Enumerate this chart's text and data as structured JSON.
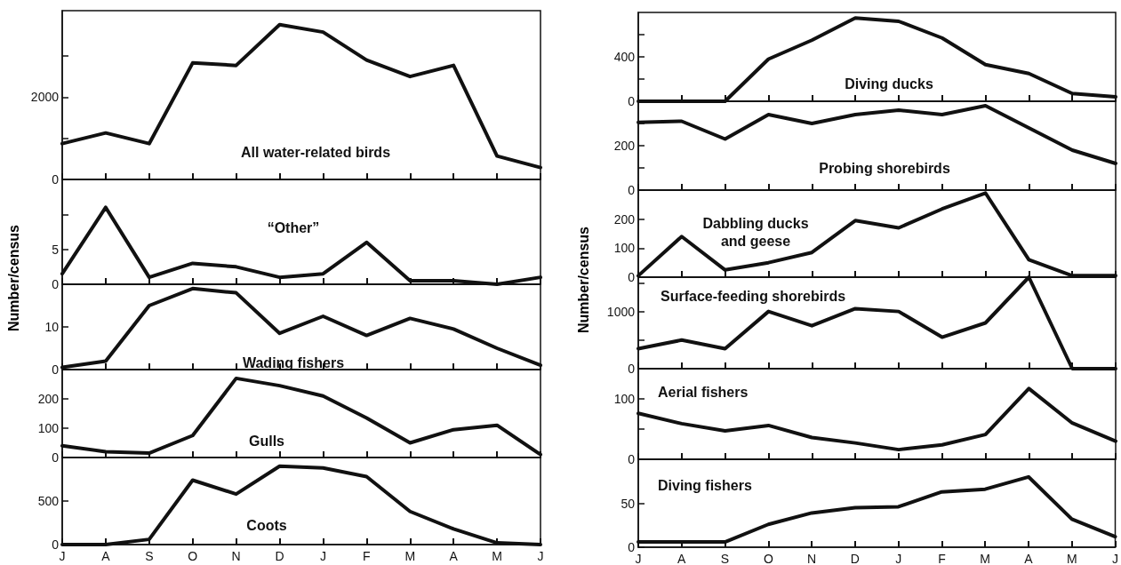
{
  "chart_data": [
    {
      "type": "line",
      "title": "All water-related birds",
      "categories": [
        null,
        null,
        null,
        null,
        null,
        null,
        null,
        null,
        null,
        null,
        null,
        null
      ],
      "values": [
        870,
        1130,
        870,
        2830,
        2770,
        3760,
        3580,
        2900,
        2500,
        2770,
        570,
        290
      ],
      "color": "#111111",
      "ylim": [
        0,
        4100
      ],
      "yticks": [
        0,
        {
          "value": 1000,
          "label": null
        },
        2000,
        {
          "value": 3000,
          "label": null
        }
      ]
    },
    {
      "type": "line",
      "title": "“Other”",
      "ylabel": "Number/census",
      "categories": [
        null,
        null,
        null,
        null,
        null,
        null,
        null,
        null,
        null,
        null,
        null,
        null
      ],
      "values": [
        1.5,
        11,
        1,
        3,
        2.5,
        1,
        1.5,
        6,
        0.5,
        0.5,
        0,
        1
      ],
      "color": "#111111",
      "ylim": [
        0,
        15
      ],
      "yticks": [
        0,
        5,
        {
          "value": 10,
          "label": null
        }
      ]
    },
    {
      "type": "line",
      "title": "Wading fishers",
      "categories": [
        null,
        null,
        null,
        null,
        null,
        null,
        null,
        null,
        null,
        null,
        null,
        null
      ],
      "values": [
        0.5,
        2,
        15,
        19,
        18,
        8.5,
        12.5,
        8,
        12,
        9.5,
        5,
        1
      ],
      "color": "#111111",
      "ylim": [
        0,
        20
      ],
      "yticks": [
        0,
        10
      ]
    },
    {
      "type": "line",
      "title": "Gulls",
      "categories": [
        null,
        null,
        null,
        null,
        null,
        null,
        null,
        null,
        null,
        null,
        null,
        null
      ],
      "values": [
        40,
        20,
        15,
        75,
        270,
        245,
        210,
        135,
        50,
        95,
        110,
        10
      ],
      "color": "#111111",
      "ylim": [
        0,
        300
      ],
      "yticks": [
        0,
        100,
        200
      ]
    },
    {
      "type": "line",
      "title": "Coots",
      "categories": [
        "J",
        "A",
        "S",
        "O",
        "N",
        "D",
        "J",
        "F",
        "M",
        "A",
        "M",
        "J"
      ],
      "values": [
        0,
        0,
        60,
        740,
        580,
        900,
        880,
        780,
        380,
        180,
        20,
        0
      ],
      "color": "#111111",
      "ylim": [
        0,
        1000
      ],
      "yticks": [
        0,
        500
      ]
    },
    {
      "type": "line",
      "title": "Diving ducks",
      "categories": [
        null,
        null,
        null,
        null,
        null,
        null,
        null,
        null,
        null,
        null,
        null,
        null
      ],
      "values": [
        0,
        0,
        0,
        380,
        550,
        750,
        720,
        570,
        330,
        250,
        70,
        40
      ],
      "color": "#111111",
      "ylim": [
        0,
        800
      ],
      "yticks": [
        0,
        {
          "value": 200,
          "label": null
        },
        400,
        {
          "value": 600,
          "label": null
        }
      ]
    },
    {
      "type": "line",
      "title": "Probing shorebirds",
      "categories": [
        null,
        null,
        null,
        null,
        null,
        null,
        null,
        null,
        null,
        null,
        null,
        null
      ],
      "values": [
        305,
        310,
        230,
        340,
        300,
        340,
        360,
        340,
        380,
        280,
        180,
        120
      ],
      "color": "#111111",
      "ylim": [
        0,
        400
      ],
      "yticks": [
        0,
        {
          "value": 100,
          "label": null
        },
        200,
        {
          "value": 300,
          "label": null
        }
      ]
    },
    {
      "type": "line",
      "title": "Dabbling ducks\nand geese",
      "ylabel": "Number/census",
      "categories": [
        null,
        null,
        null,
        null,
        null,
        null,
        null,
        null,
        null,
        null,
        null,
        null
      ],
      "values": [
        5,
        140,
        25,
        50,
        85,
        195,
        170,
        235,
        290,
        60,
        5,
        5
      ],
      "color": "#111111",
      "ylim": [
        0,
        300
      ],
      "yticks": [
        0,
        100,
        200
      ]
    },
    {
      "type": "line",
      "title": "Surface-feeding shorebirds",
      "categories": [
        null,
        null,
        null,
        null,
        null,
        null,
        null,
        null,
        null,
        null,
        null,
        null
      ],
      "values": [
        350,
        500,
        350,
        1000,
        750,
        1050,
        1000,
        550,
        800,
        1600,
        0,
        0
      ],
      "color": "#111111",
      "ylim": [
        0,
        1600
      ],
      "yticks": [
        0,
        {
          "value": 500,
          "label": null
        },
        1000,
        {
          "value": 1500,
          "label": null
        }
      ]
    },
    {
      "type": "line",
      "title": "Aerial fishers",
      "categories": [
        null,
        null,
        null,
        null,
        null,
        null,
        null,
        null,
        null,
        null,
        null,
        null
      ],
      "values": [
        76,
        59,
        47,
        56,
        36,
        27,
        16,
        24,
        41,
        117,
        60,
        30
      ],
      "color": "#111111",
      "ylim": [
        0,
        150
      ],
      "yticks": [
        0,
        {
          "value": 50,
          "label": null
        },
        100
      ]
    },
    {
      "type": "line",
      "title": "Diving fishers",
      "categories": [
        "J",
        "A",
        "S",
        "O",
        "N",
        "D",
        "J",
        "F",
        "M",
        "A",
        "M",
        "J"
      ],
      "values": [
        6,
        6,
        6,
        26,
        39,
        45,
        46,
        63,
        66,
        80,
        32,
        12
      ],
      "color": "#111111",
      "ylim": [
        0,
        100
      ],
      "yticks": [
        0,
        50
      ]
    }
  ]
}
